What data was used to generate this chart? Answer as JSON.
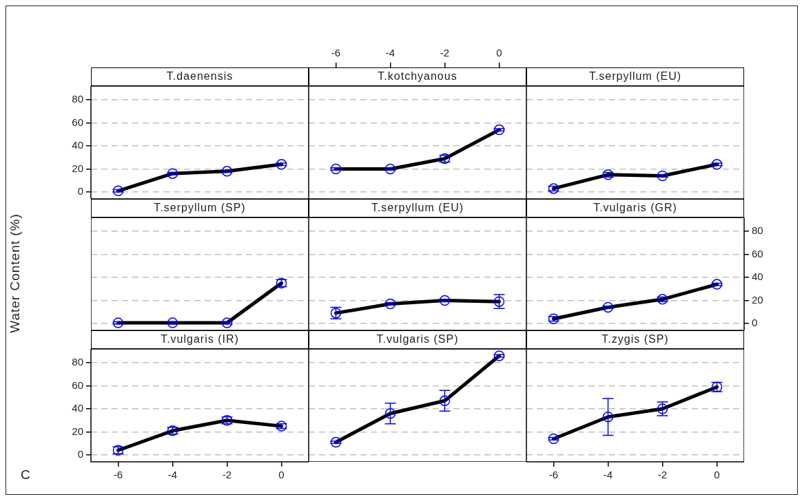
{
  "chart_data": [
    {
      "type": "line",
      "title": "T.daenensis",
      "x": [
        -6,
        -4,
        -2,
        0
      ],
      "xlim": [
        -7,
        1
      ],
      "xticks": [
        -6,
        -4,
        -2,
        0
      ],
      "ylim": [
        -6,
        92
      ],
      "yticks": [
        0,
        20,
        40,
        60,
        80
      ],
      "grid": "y",
      "marker": "circle",
      "tick_labels": "y",
      "series": [
        {
          "color": "#000000",
          "values": [
            1,
            16,
            18,
            24
          ],
          "errors": [
            1,
            1,
            1,
            1
          ]
        }
      ]
    },
    {
      "type": "line",
      "title": "T.kotchyanous",
      "x": [
        -6,
        -4,
        -2,
        0
      ],
      "xlim": [
        -7,
        1
      ],
      "xticks": [
        -6,
        -4,
        -2,
        0
      ],
      "ylim": [
        -6,
        92
      ],
      "yticks": [
        0,
        20,
        40,
        60,
        80
      ],
      "grid": "y",
      "marker": "circle",
      "tick_labels": "x",
      "series": [
        {
          "color": "#000000",
          "values": [
            20,
            20,
            29,
            54
          ],
          "errors": [
            1,
            1,
            3,
            1
          ]
        }
      ]
    },
    {
      "type": "line",
      "title": "T.serpyllum (EU)",
      "x": [
        -6,
        -4,
        -2,
        0
      ],
      "xlim": [
        -7,
        1
      ],
      "xticks": [
        -6,
        -4,
        -2,
        0
      ],
      "ylim": [
        -6,
        92
      ],
      "yticks": [
        0,
        20,
        40,
        60,
        80
      ],
      "grid": "y",
      "marker": "circle",
      "tick_labels": false,
      "series": [
        {
          "color": "#000000",
          "values": [
            3,
            15,
            14,
            24
          ],
          "errors": [
            2,
            2,
            1,
            1
          ]
        }
      ]
    },
    {
      "type": "line",
      "title": "T.serpyllum (SP)",
      "ylabel": "Water Content (%)",
      "x": [
        -6,
        -4,
        -2,
        0
      ],
      "xlim": [
        -7,
        1
      ],
      "xticks": [
        -6,
        -4,
        -2,
        0
      ],
      "ylim": [
        -6,
        92
      ],
      "yticks": [
        0,
        20,
        40,
        60,
        80
      ],
      "grid": "y",
      "marker": "circle",
      "tick_labels": false,
      "series": [
        {
          "color": "#000000",
          "values": [
            0.5,
            0.5,
            0.5,
            35
          ],
          "errors": [
            1,
            1,
            1,
            3
          ]
        }
      ]
    },
    {
      "type": "line",
      "title": "T.serpyllum (EU)",
      "x": [
        -6,
        -4,
        -2,
        0
      ],
      "xlim": [
        -7,
        1
      ],
      "xticks": [
        -6,
        -4,
        -2,
        0
      ],
      "ylim": [
        -6,
        92
      ],
      "yticks": [
        0,
        20,
        40,
        60,
        80
      ],
      "grid": "y",
      "marker": "circle",
      "tick_labels": false,
      "series": [
        {
          "color": "#000000",
          "values": [
            9,
            17,
            20,
            19
          ],
          "errors": [
            5,
            1,
            1,
            6
          ]
        }
      ]
    },
    {
      "type": "line",
      "title": "T.vulgaris (GR)",
      "x": [
        -6,
        -4,
        -2,
        0
      ],
      "xlim": [
        -7,
        1
      ],
      "xticks": [
        -6,
        -4,
        -2,
        0
      ],
      "ylim": [
        -6,
        92
      ],
      "yticks": [
        0,
        20,
        40,
        60,
        80
      ],
      "grid": "y",
      "marker": "circle",
      "tick_labels": "y",
      "series": [
        {
          "color": "#000000",
          "values": [
            4,
            14,
            21,
            34
          ],
          "errors": [
            2,
            1,
            2,
            1
          ]
        }
      ]
    },
    {
      "type": "line",
      "title": "T.vulgaris (IR)",
      "annotations": [
        "C"
      ],
      "x": [
        -6,
        -4,
        -2,
        0
      ],
      "xlim": [
        -7,
        1
      ],
      "xticks": [
        -6,
        -4,
        -2,
        0
      ],
      "ylim": [
        -6,
        92
      ],
      "yticks": [
        0,
        20,
        40,
        60,
        80
      ],
      "grid": "y",
      "marker": "circle",
      "series": [
        {
          "color": "#000000",
          "values": [
            4,
            21,
            30,
            25
          ],
          "errors": [
            3,
            3,
            3,
            2
          ]
        }
      ]
    },
    {
      "type": "line",
      "title": "T.vulgaris (SP)",
      "x": [
        -6,
        -4,
        -2,
        0
      ],
      "xlim": [
        -7,
        1
      ],
      "xticks": [
        -6,
        -4,
        -2,
        0
      ],
      "ylim": [
        -6,
        92
      ],
      "yticks": [
        0,
        20,
        40,
        60,
        80
      ],
      "grid": "y",
      "marker": "circle",
      "tick_labels": false,
      "series": [
        {
          "color": "#000000",
          "values": [
            11,
            36,
            47,
            86
          ],
          "errors": [
            1,
            9,
            9,
            1
          ]
        }
      ]
    },
    {
      "type": "line",
      "title": "T.zygis (SP)",
      "x": [
        -6,
        -4,
        -2,
        0
      ],
      "xlim": [
        -7,
        1
      ],
      "xticks": [
        -6,
        -4,
        -2,
        0
      ],
      "ylim": [
        -6,
        92
      ],
      "yticks": [
        0,
        20,
        40,
        60,
        80
      ],
      "grid": "y",
      "marker": "circle",
      "tick_labels": "x",
      "series": [
        {
          "color": "#000000",
          "values": [
            14,
            33,
            40,
            59
          ],
          "errors": [
            1,
            16,
            6,
            4
          ]
        }
      ]
    }
  ]
}
